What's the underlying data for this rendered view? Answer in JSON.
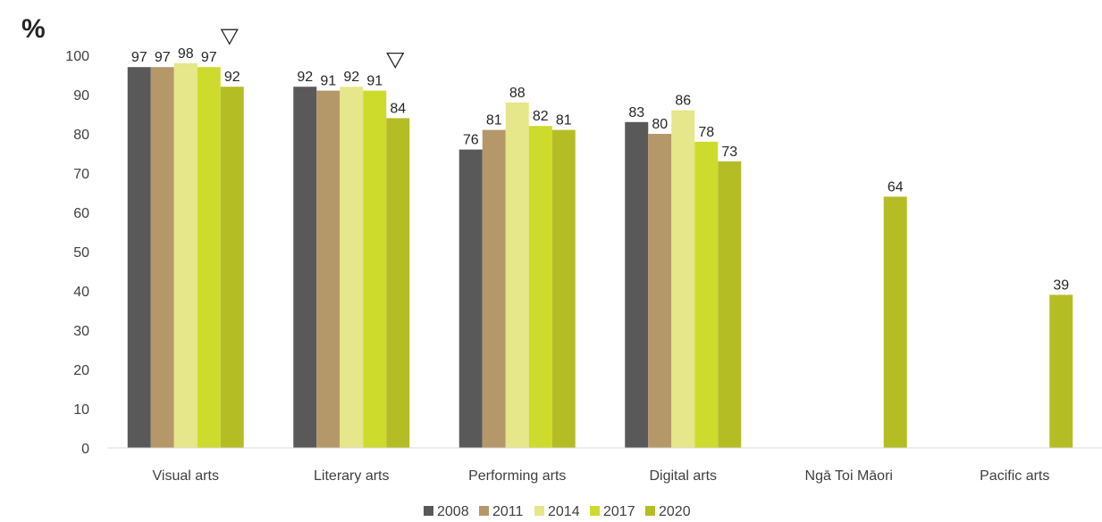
{
  "chart_data": {
    "type": "bar",
    "ylabel": "%",
    "ylim": [
      0,
      100
    ],
    "yticks": [
      0,
      10,
      20,
      30,
      40,
      50,
      60,
      70,
      80,
      90,
      100
    ],
    "categories": [
      "Visual arts",
      "Literary arts",
      "Performing arts",
      "Digital arts",
      "Ngā Toi Māori",
      "Pacific arts"
    ],
    "series": [
      {
        "name": "2008",
        "color": "#595959",
        "values": [
          97,
          92,
          76,
          83,
          null,
          null
        ]
      },
      {
        "name": "2011",
        "color": "#b5986a",
        "values": [
          97,
          91,
          81,
          80,
          null,
          null
        ]
      },
      {
        "name": "2014",
        "color": "#e6e68a",
        "values": [
          98,
          92,
          88,
          86,
          null,
          null
        ]
      },
      {
        "name": "2017",
        "color": "#cddb2c",
        "values": [
          97,
          91,
          82,
          78,
          null,
          null
        ]
      },
      {
        "name": "2020",
        "color": "#b5bd25",
        "values": [
          92,
          84,
          81,
          73,
          64,
          39
        ]
      }
    ],
    "annotations": [
      {
        "category": "Visual arts",
        "series": "2017",
        "symbol": "▽"
      },
      {
        "category": "Literary arts",
        "series": "2017",
        "symbol": "▽"
      }
    ],
    "grid": false,
    "legend_position": "bottom"
  }
}
